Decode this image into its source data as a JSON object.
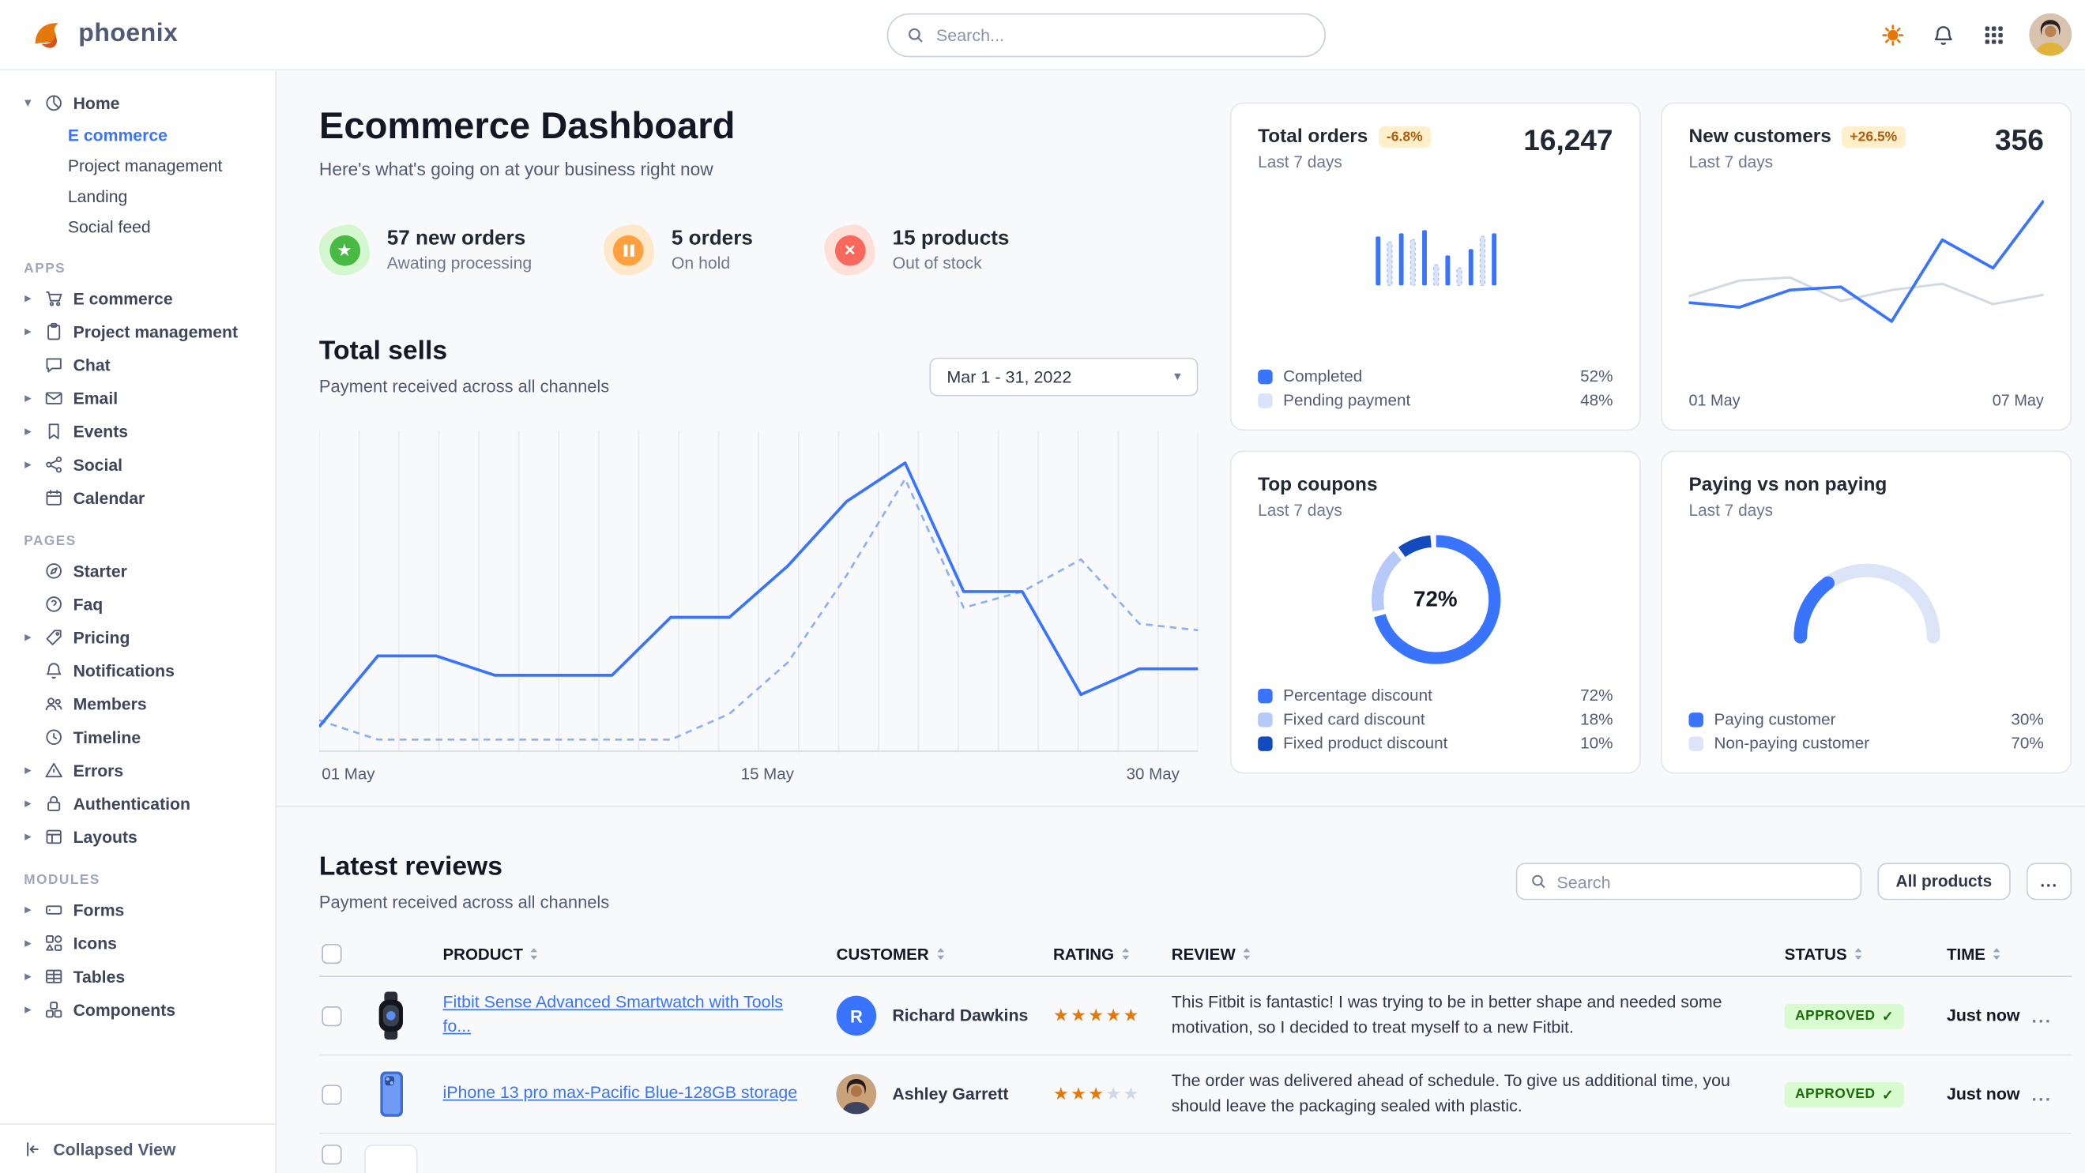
{
  "colors": {
    "primary": "#3874ff",
    "primary_light": "#b6c9f9",
    "primary_dark": "#134bbf",
    "warning_badge_bg": "#ffefca",
    "warning_badge_text": "#b05c0d",
    "success_badge_bg": "#d9fbd0",
    "success_badge_text": "#1c6c09",
    "star_orange": "#e5780b"
  },
  "topbar": {
    "brand": "phoenix",
    "search_placeholder": "Search..."
  },
  "sidebar": {
    "home": {
      "label": "Home",
      "children": [
        "E commerce",
        "Project management",
        "Landing",
        "Social feed"
      ]
    },
    "sections": [
      {
        "label": "APPS",
        "items": [
          {
            "label": "E commerce"
          },
          {
            "label": "Project management"
          },
          {
            "label": "Chat"
          },
          {
            "label": "Email"
          },
          {
            "label": "Events"
          },
          {
            "label": "Social"
          },
          {
            "label": "Calendar"
          }
        ]
      },
      {
        "label": "PAGES",
        "items": [
          {
            "label": "Starter"
          },
          {
            "label": "Faq"
          },
          {
            "label": "Pricing"
          },
          {
            "label": "Notifications"
          },
          {
            "label": "Members"
          },
          {
            "label": "Timeline"
          },
          {
            "label": "Errors"
          },
          {
            "label": "Authentication"
          },
          {
            "label": "Layouts"
          }
        ]
      },
      {
        "label": "MODULES",
        "items": [
          {
            "label": "Forms"
          },
          {
            "label": "Icons"
          },
          {
            "label": "Tables"
          },
          {
            "label": "Components"
          }
        ]
      }
    ],
    "collapsed_view": "Collapsed View"
  },
  "page": {
    "title": "Ecommerce Dashboard",
    "subtitle": "Here's what's going on at your business right now"
  },
  "stats": [
    {
      "value": "57 new orders",
      "caption": "Awating processing"
    },
    {
      "value": "5 orders",
      "caption": "On hold"
    },
    {
      "value": "15 products",
      "caption": "Out of stock"
    }
  ],
  "total_sells": {
    "title": "Total sells",
    "subtitle": "Payment received across all channels",
    "date_range": "Mar 1 - 31, 2022",
    "x_left": "01 May",
    "x_mid": "15 May",
    "x_right": "30 May"
  },
  "cards": {
    "total_orders": {
      "title": "Total orders",
      "badge": "-6.8%",
      "period": "Last 7 days",
      "value": "16,247",
      "legend": [
        {
          "label": "Completed",
          "value": "52%"
        },
        {
          "label": "Pending payment",
          "value": "48%"
        }
      ]
    },
    "new_customers": {
      "title": "New customers",
      "badge": "+26.5%",
      "period": "Last 7 days",
      "value": "356",
      "x_left": "01 May",
      "x_right": "07 May"
    },
    "top_coupons": {
      "title": "Top coupons",
      "period": "Last 7 days",
      "center_label": "72%",
      "legend": [
        {
          "label": "Percentage discount",
          "value": "72%"
        },
        {
          "label": "Fixed card discount",
          "value": "18%"
        },
        {
          "label": "Fixed product discount",
          "value": "10%"
        }
      ]
    },
    "paying": {
      "title": "Paying vs non paying",
      "period": "Last 7 days",
      "legend": [
        {
          "label": "Paying customer",
          "value": "30%"
        },
        {
          "label": "Non-paying customer",
          "value": "70%"
        }
      ]
    }
  },
  "reviews": {
    "title": "Latest reviews",
    "subtitle": "Payment received across all channels",
    "search_placeholder": "Search",
    "all_products_label": "All products",
    "more_label": "...",
    "columns": {
      "product": "PRODUCT",
      "customer": "CUSTOMER",
      "rating": "RATING",
      "review": "REVIEW",
      "status": "STATUS",
      "time": "TIME"
    },
    "rows": [
      {
        "product": "Fitbit Sense Advanced Smartwatch with Tools fo...",
        "customer": "Richard Dawkins",
        "avatar_initial": "R",
        "rating": 5,
        "review": "This Fitbit is fantastic! I was trying to be in better shape and needed some motivation, so I decided to treat myself to a new Fitbit.",
        "status": "APPROVED",
        "status_check": "✓",
        "time": "Just now",
        "row_more": "..."
      },
      {
        "product": "iPhone 13 pro max-Pacific Blue-128GB storage",
        "customer": "Ashley Garrett",
        "rating": 3,
        "review": "The order was delivered ahead of schedule. To give us additional time, you should leave the packaging sealed with plastic.",
        "status": "APPROVED",
        "status_check": "✓",
        "time": "Just now",
        "row_more": "..."
      }
    ]
  },
  "chart_data": [
    {
      "id": "total-sells",
      "type": "line",
      "title": "Total sells",
      "x_labels": [
        "01 May",
        "15 May",
        "30 May"
      ],
      "ylim": [
        0,
        100
      ],
      "grid": "vertical",
      "series": [
        {
          "name": "current",
          "style": "solid",
          "values": [
            8,
            30,
            30,
            24,
            24,
            24,
            42,
            42,
            58,
            78,
            90,
            50,
            50,
            18,
            26,
            26
          ]
        },
        {
          "name": "previous",
          "style": "dashed",
          "values": [
            10,
            4,
            4,
            4,
            4,
            4,
            4,
            12,
            28,
            55,
            85,
            45,
            50,
            60,
            40,
            38
          ]
        }
      ]
    },
    {
      "id": "total-orders",
      "type": "bar",
      "title": "Total orders",
      "values": [
        62,
        55,
        66,
        58,
        70,
        26,
        38,
        22,
        46,
        62,
        66
      ],
      "kinds": [
        "completed",
        "pending",
        "completed",
        "pending",
        "completed",
        "pending",
        "completed",
        "pending",
        "completed",
        "pending",
        "completed"
      ],
      "legend": {
        "Completed": 52,
        "Pending payment": 48
      }
    },
    {
      "id": "new-customers",
      "type": "line",
      "title": "New customers",
      "x_labels": [
        "01 May",
        "07 May"
      ],
      "series": [
        {
          "name": "current",
          "style": "solid",
          "values": [
            30,
            27,
            38,
            40,
            18,
            70,
            52,
            95
          ]
        },
        {
          "name": "previous",
          "style": "solid-gray",
          "values": [
            34,
            44,
            46,
            31,
            38,
            42,
            29,
            35
          ]
        }
      ]
    },
    {
      "id": "top-coupons",
      "type": "donut",
      "title": "Top coupons",
      "labels": [
        "Percentage discount",
        "Fixed card discount",
        "Fixed product discount"
      ],
      "values": [
        72,
        18,
        10
      ],
      "center_label": "72%"
    },
    {
      "id": "paying-gauge",
      "type": "gauge",
      "title": "Paying vs non paying",
      "value": 30,
      "max": 100,
      "labels": [
        "Paying customer",
        "Non-paying customer"
      ],
      "values_pct": [
        30,
        70
      ]
    }
  ]
}
